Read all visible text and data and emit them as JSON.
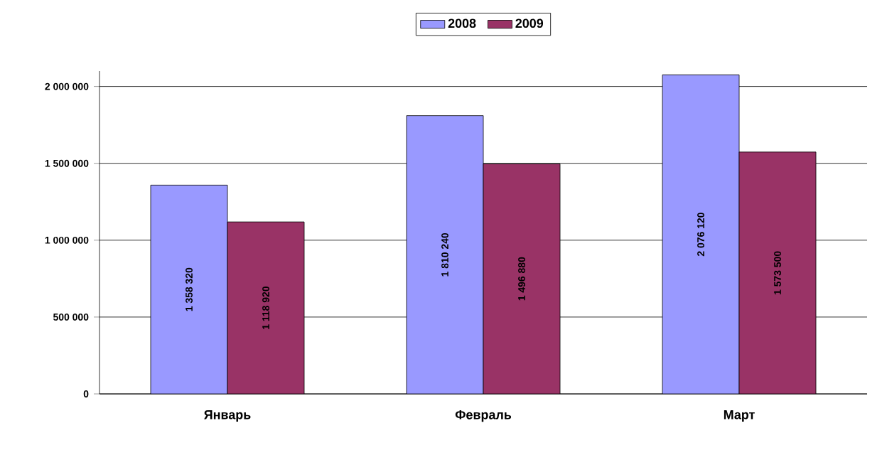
{
  "chart_data": {
    "type": "bar",
    "categories": [
      "Январь",
      "Февраль",
      "Март"
    ],
    "series": [
      {
        "name": "2008",
        "color": "#9999ff",
        "values": [
          1358320,
          1810240,
          2076120
        ],
        "value_labels": [
          "1 358 320",
          "1 810 240",
          "2 076 120"
        ]
      },
      {
        "name": "2009",
        "color": "#993366",
        "values": [
          1118920,
          1496880,
          1573500
        ],
        "value_labels": [
          "1 118 920",
          "1 496 880",
          "1 573 500"
        ]
      }
    ],
    "ylim": [
      0,
      2100000
    ],
    "yticks": [
      {
        "value": 0,
        "label": "0"
      },
      {
        "value": 500000,
        "label": "500 000"
      },
      {
        "value": 1000000,
        "label": "1 000 000"
      },
      {
        "value": 1500000,
        "label": "1 500 000"
      },
      {
        "value": 2000000,
        "label": "2 000 000"
      }
    ],
    "grid": "y",
    "legend": "top"
  }
}
